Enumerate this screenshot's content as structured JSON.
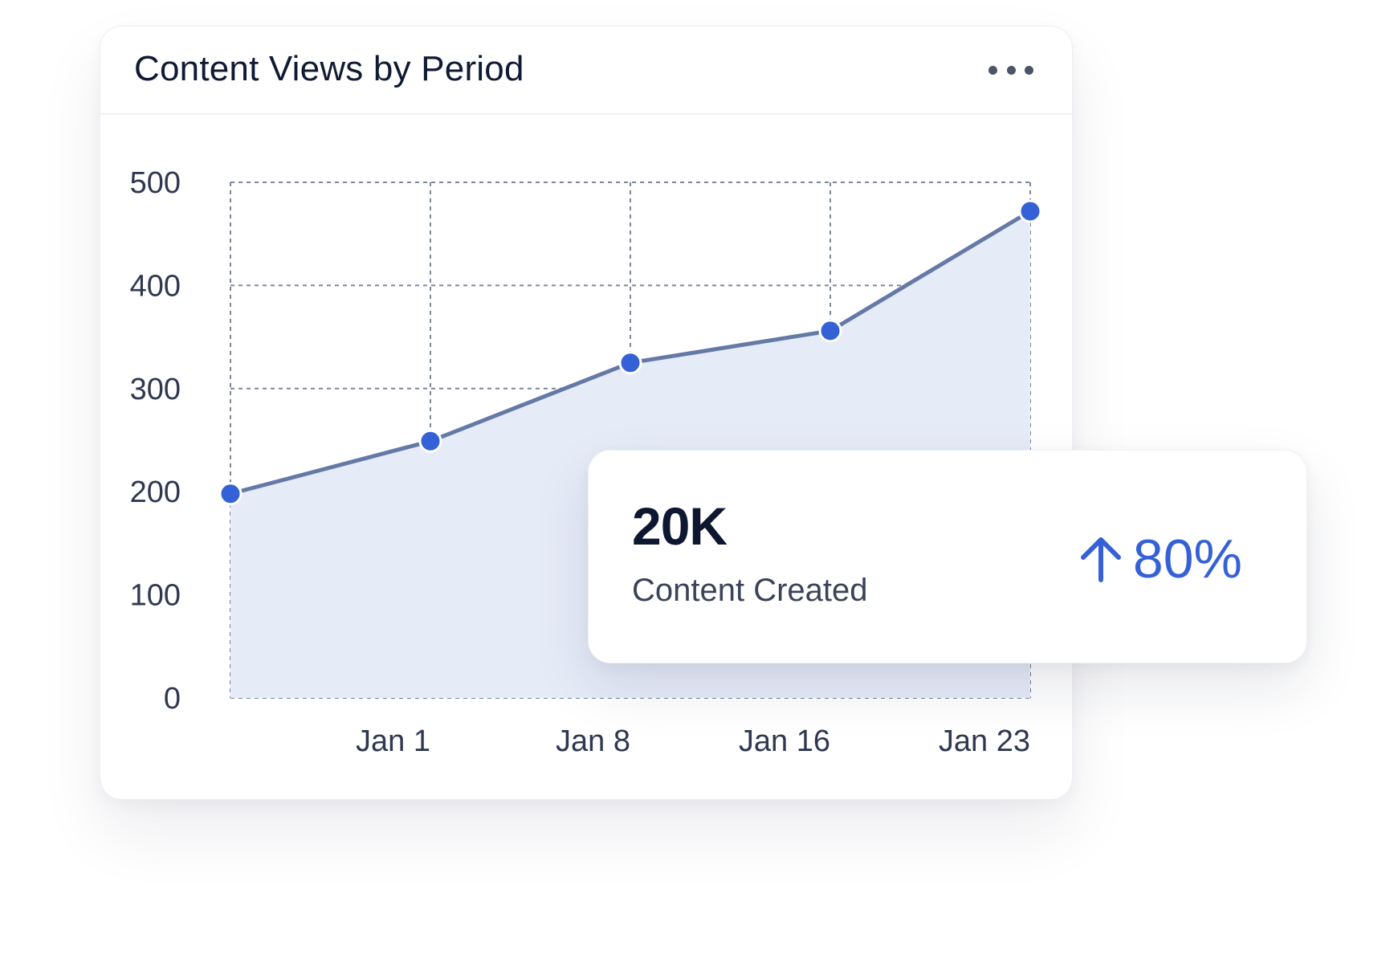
{
  "card": {
    "title": "Content Views by Period"
  },
  "chart_data": {
    "type": "area",
    "title": "Content Views by Period",
    "xlabel": "",
    "ylabel": "",
    "x_ticks": [
      "Jan 1",
      "Jan 8",
      "Jan 16",
      "Jan 23"
    ],
    "y_ticks": [
      0,
      100,
      200,
      300,
      400,
      500
    ],
    "ylim": [
      0,
      500
    ],
    "grid": true,
    "series": [
      {
        "x_index": [
          0,
          1,
          2,
          3,
          4
        ],
        "values": [
          198,
          249,
          325,
          356,
          472
        ]
      }
    ],
    "colors": {
      "line": "#6479a6",
      "fill": "#e6ebf8",
      "point": "#3461d6",
      "grid": "#7e869e"
    }
  },
  "stat": {
    "value": "20K",
    "label": "Content Created",
    "change": "80%",
    "change_icon": "arrow-up-icon",
    "change_color": "#3461d6"
  }
}
